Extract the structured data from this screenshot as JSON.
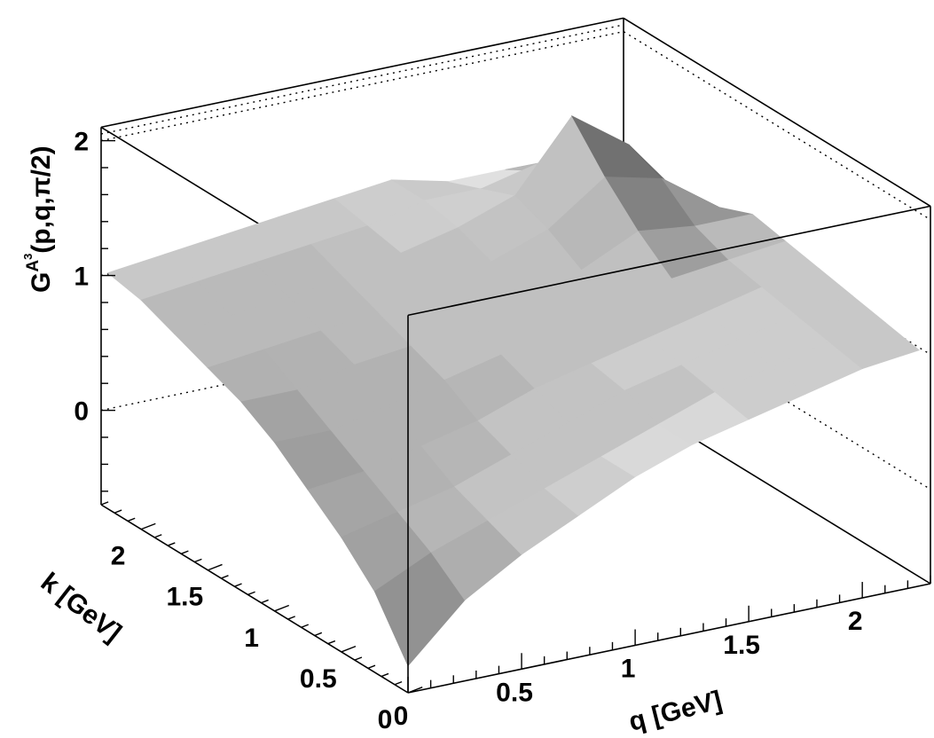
{
  "chart_data": {
    "type": "surface",
    "title": "",
    "zlabel": "G",
    "zlabel_sup": "A",
    "zlabel_sup2": "3",
    "zlabel_rest": "(p,q,π/2)",
    "xlabel": "q [GeV]",
    "ylabel": "k [GeV]",
    "xlim": [
      0,
      2.3
    ],
    "ylim": [
      0,
      2.3
    ],
    "zlim": [
      -0.7,
      2.1
    ],
    "x_ticks": [
      "0",
      "0.5",
      "1",
      "1.5",
      "2"
    ],
    "x_tick_values": [
      0,
      0.5,
      1,
      1.5,
      2
    ],
    "y_ticks": [
      "0",
      "0.5",
      "1",
      "1.5",
      "2"
    ],
    "y_tick_values": [
      0,
      0.5,
      1,
      1.5,
      2
    ],
    "z_ticks": [
      "0",
      "1",
      "2"
    ],
    "z_tick_values": [
      0,
      1,
      2
    ],
    "grid": true,
    "surface_color": "#b4b4b4",
    "x": [
      0,
      0.25,
      0.5,
      0.75,
      1,
      1.25,
      1.5,
      1.75,
      2,
      2.25
    ],
    "y": [
      0,
      0.25,
      0.5,
      0.75,
      1,
      1.25,
      1.5,
      1.75,
      2,
      2.25
    ],
    "z": [
      [
        -0.5,
        -0.1,
        0.15,
        0.35,
        0.55,
        0.7,
        0.8,
        0.9,
        1.0,
        1.05
      ],
      [
        -0.1,
        0.1,
        0.25,
        0.4,
        0.55,
        0.7,
        0.85,
        0.95,
        1.05,
        1.1
      ],
      [
        0.15,
        0.25,
        0.35,
        0.5,
        0.65,
        0.8,
        0.9,
        1.0,
        1.1,
        1.15
      ],
      [
        0.35,
        0.4,
        0.5,
        0.6,
        0.75,
        0.85,
        0.95,
        1.05,
        1.15,
        1.2
      ],
      [
        0.55,
        0.55,
        0.65,
        0.75,
        0.85,
        0.95,
        1.05,
        1.15,
        1.2,
        1.25
      ],
      [
        0.7,
        0.7,
        0.8,
        0.85,
        0.95,
        1.05,
        1.15,
        1.25,
        1.3,
        1.3
      ],
      [
        0.8,
        0.85,
        0.9,
        0.95,
        1.05,
        1.15,
        1.3,
        1.4,
        1.3,
        1.2
      ],
      [
        0.9,
        0.95,
        1.0,
        1.05,
        1.15,
        1.35,
        1.6,
        1.9,
        1.4,
        1.2
      ],
      [
        1.0,
        1.05,
        1.1,
        1.15,
        1.2,
        1.3,
        1.5,
        1.6,
        1.3,
        1.1
      ],
      [
        1.05,
        1.1,
        1.15,
        1.2,
        1.25,
        1.3,
        1.2,
        1.1,
        1.0,
        0.95
      ]
    ]
  }
}
